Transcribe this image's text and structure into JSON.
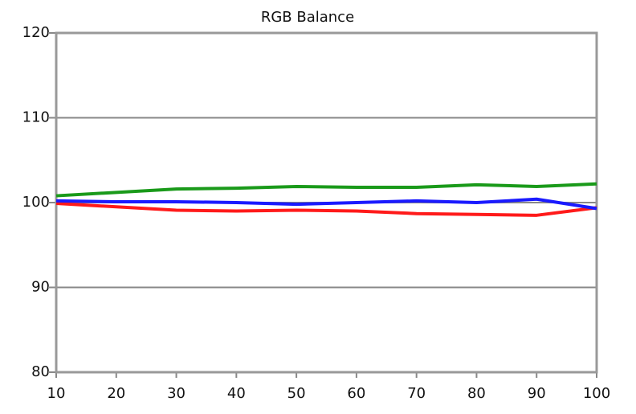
{
  "chart_data": {
    "type": "line",
    "title": "RGB Balance",
    "x": [
      10,
      20,
      30,
      40,
      50,
      60,
      70,
      80,
      90,
      100
    ],
    "xlim": [
      10,
      100
    ],
    "xticks": [
      10,
      20,
      30,
      40,
      50,
      60,
      70,
      80,
      90,
      100
    ],
    "ylim": [
      80,
      120
    ],
    "yticks": [
      80,
      90,
      100,
      110,
      120
    ],
    "grid": true,
    "series": [
      {
        "color": "#1a9a1a",
        "values": [
          100.8,
          101.2,
          101.6,
          101.7,
          101.9,
          101.8,
          101.8,
          102.1,
          101.9,
          102.2
        ]
      },
      {
        "color": "#ff1a1a",
        "values": [
          99.9,
          99.5,
          99.1,
          99.0,
          99.1,
          99.0,
          98.7,
          98.6,
          98.5,
          99.4
        ]
      },
      {
        "color": "#1a1aff",
        "values": [
          100.2,
          100.1,
          100.1,
          100.0,
          99.8,
          100.0,
          100.2,
          100.0,
          100.4,
          99.3
        ]
      }
    ]
  }
}
